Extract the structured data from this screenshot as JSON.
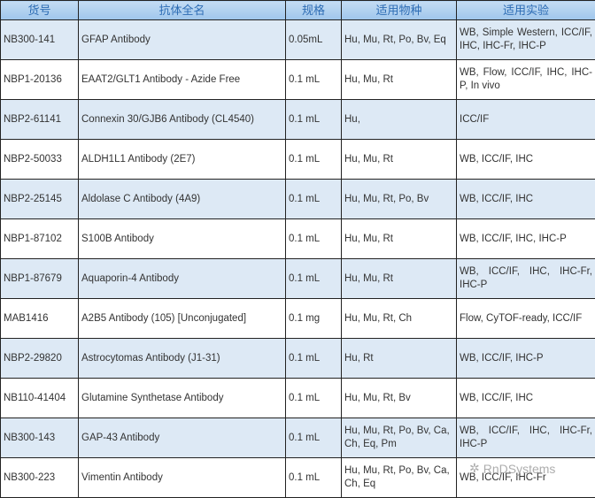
{
  "headers": [
    "货号",
    "抗体全名",
    "规格",
    "适用物种",
    "适用实验"
  ],
  "rows": [
    [
      "NB300-141",
      "GFAP Antibody",
      "0.05mL",
      "Hu, Mu, Rt, Po, Bv, Eq",
      "WB, Simple Western, ICC/IF, IHC, IHC-Fr, IHC-P"
    ],
    [
      "NBP1-20136",
      "EAAT2/GLT1 Antibody - Azide Free",
      "0.1 mL",
      "Hu, Mu, Rt",
      "WB, Flow, ICC/IF, IHC, IHC-P, In vivo"
    ],
    [
      "NBP2-61141",
      "Connexin 30/GJB6 Antibody (CL4540)",
      "0.1 mL",
      "Hu,",
      "ICC/IF"
    ],
    [
      "NBP2-50033",
      "ALDH1L1 Antibody (2E7)",
      "0.1 mL",
      "Hu, Mu, Rt",
      "WB, ICC/IF, IHC"
    ],
    [
      "NBP2-25145",
      "Aldolase C Antibody (4A9)",
      "0.1 mL",
      "Hu, Mu, Rt, Po, Bv",
      "WB, ICC/IF, IHC"
    ],
    [
      "NBP1-87102",
      "S100B Antibody",
      "0.1 mL",
      "Hu, Mu, Rt",
      "WB, ICC/IF, IHC, IHC-P"
    ],
    [
      "NBP1-87679",
      "Aquaporin-4 Antibody",
      "0.1 mL",
      "Hu, Mu, Rt",
      "WB, ICC/IF, IHC, IHC-Fr, IHC-P"
    ],
    [
      "MAB1416",
      "A2B5 Antibody (105) [Unconjugated]",
      "0.1 mg",
      "Hu, Mu, Rt, Ch",
      "Flow, CyTOF-ready, ICC/IF"
    ],
    [
      "NBP2-29820",
      "Astrocytomas Antibody (J1-31)",
      "0.1 mL",
      "Hu, Rt",
      "WB, ICC/IF, IHC-P"
    ],
    [
      "NB110-41404",
      "Glutamine Synthetase Antibody",
      "0.1 mL",
      "Hu, Mu, Rt, Bv",
      "WB, ICC/IF, IHC"
    ],
    [
      "NB300-143",
      "GAP-43 Antibody",
      "0.1 mL",
      "Hu, Mu, Rt, Po, Bv, Ca, Ch, Eq, Pm",
      "WB, ICC/IF, IHC, IHC-Fr, IHC-P"
    ],
    [
      "NB300-223",
      "Vimentin Antibody",
      "0.1 mL",
      "Hu, Mu, Rt, Po, Bv, Ca, Ch, Eq",
      "WB, ICC/IF, IHC-Fr"
    ]
  ],
  "watermark": "RnDSystems",
  "colors": {
    "header_text": "#2d6cb4",
    "header_bg": "#a9cdef",
    "alt_row": "#dde9f5"
  }
}
